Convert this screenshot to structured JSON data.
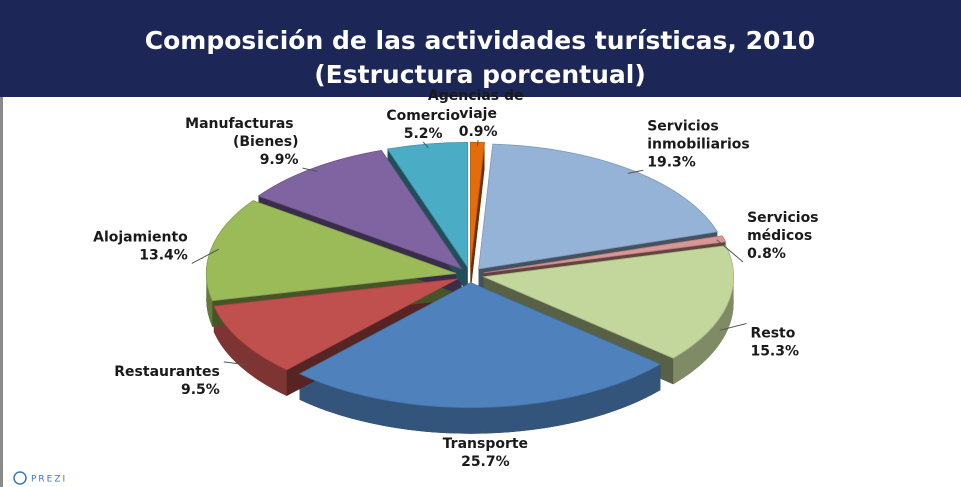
{
  "chart_data": {
    "type": "pie",
    "title": "Composición de las actividades turísticas, 2010",
    "subtitle": "(Estructura porcentual)",
    "categories": [
      "Agencias de viaje",
      "Servicios inmobiliarios",
      "Servicios médicos",
      "Resto",
      "Transporte",
      "Restaurantes",
      "Alojamiento",
      "Manufacturas (Bienes)",
      "Comercio"
    ],
    "values": [
      0.9,
      19.3,
      0.8,
      15.3,
      25.7,
      9.5,
      13.4,
      9.9,
      5.2
    ],
    "value_labels": [
      "0.9%",
      "19.3%",
      "0.8%",
      "15.3%",
      "25.7%",
      "9.5%",
      "13.4%",
      "9.9%",
      "5.2%"
    ],
    "colors": [
      "#e46c0a",
      "#95b3d7",
      "#d99694",
      "#c3d69b",
      "#4f81bd",
      "#c0504d",
      "#9bbb59",
      "#8064a2",
      "#4bacc6"
    ],
    "logo": "PREZI"
  }
}
